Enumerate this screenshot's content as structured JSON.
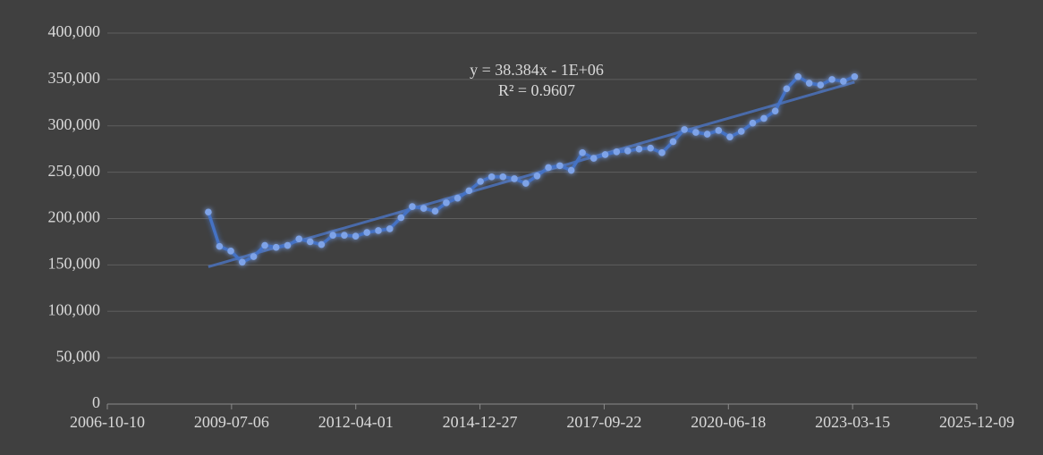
{
  "chart_data": {
    "type": "line",
    "annotations": [
      "y = 38.384x - 1E+06",
      "R² = 0.9607"
    ],
    "x": [
      "2008-12-31",
      "2009-03-31",
      "2009-06-30",
      "2009-09-30",
      "2009-12-31",
      "2010-03-31",
      "2010-06-30",
      "2010-09-30",
      "2010-12-31",
      "2011-03-31",
      "2011-06-30",
      "2011-09-30",
      "2011-12-31",
      "2012-03-31",
      "2012-06-30",
      "2012-09-30",
      "2012-12-31",
      "2013-03-31",
      "2013-06-30",
      "2013-09-30",
      "2013-12-31",
      "2014-03-31",
      "2014-06-30",
      "2014-09-30",
      "2014-12-31",
      "2015-03-31",
      "2015-06-30",
      "2015-09-30",
      "2015-12-31",
      "2016-03-31",
      "2016-06-30",
      "2016-09-30",
      "2016-12-31",
      "2017-03-31",
      "2017-06-30",
      "2017-09-30",
      "2017-12-31",
      "2018-03-31",
      "2018-06-30",
      "2018-09-30",
      "2018-12-31",
      "2019-03-31",
      "2019-06-30",
      "2019-09-30",
      "2019-12-31",
      "2020-03-31",
      "2020-06-30",
      "2020-09-30",
      "2020-12-31",
      "2021-03-31",
      "2021-06-30",
      "2021-09-30",
      "2021-12-31",
      "2022-03-31",
      "2022-06-30",
      "2022-09-30",
      "2022-12-31",
      "2023-03-31"
    ],
    "series": [
      {
        "color": "#4472c4",
        "values": [
          207000,
          170000,
          165000,
          153000,
          159000,
          171000,
          169000,
          171000,
          178000,
          175000,
          172000,
          182000,
          182000,
          181000,
          185000,
          187000,
          189000,
          201000,
          213000,
          211000,
          208000,
          217000,
          222000,
          230000,
          240000,
          245000,
          245000,
          243000,
          238000,
          246000,
          255000,
          257000,
          252000,
          271000,
          265000,
          269000,
          272000,
          273000,
          275000,
          276000,
          271000,
          283000,
          296000,
          293000,
          291000,
          295000,
          288000,
          294000,
          303000,
          308000,
          316000,
          340000,
          353000,
          346000,
          344000,
          350000,
          348000,
          353000
        ]
      }
    ],
    "trendline": {
      "color": "#4a6fb5",
      "x": [
        "2008-12-31",
        "2023-03-31"
      ],
      "values": [
        148000,
        347000
      ]
    },
    "xlim": [
      "2006-10-10",
      "2025-12-09"
    ],
    "xticks": [
      "2006-10-10",
      "2009-07-06",
      "2012-04-01",
      "2014-12-27",
      "2017-09-22",
      "2020-06-18",
      "2023-03-15",
      "2025-12-09"
    ],
    "ylim": [
      0,
      400000
    ],
    "yticks": [
      0,
      {
        "value": 50000,
        "label": "50,000"
      },
      {
        "value": 100000,
        "label": "100,000"
      },
      {
        "value": 150000,
        "label": "150,000"
      },
      {
        "value": 200000,
        "label": "200,000"
      },
      {
        "value": 250000,
        "label": "250,000"
      },
      {
        "value": 300000,
        "label": "300,000"
      },
      {
        "value": 350000,
        "label": "350,000"
      },
      {
        "value": 400000,
        "label": "400,000"
      }
    ],
    "grid": true
  }
}
